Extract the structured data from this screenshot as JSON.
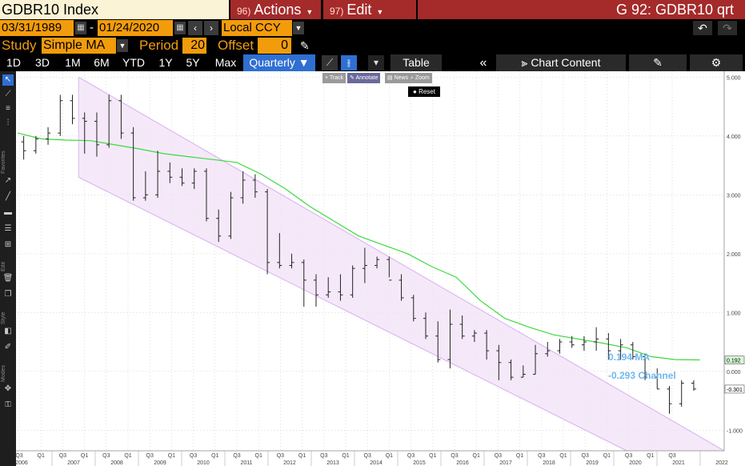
{
  "title": {
    "security": "GDBR10 Index",
    "actions_num": "96)",
    "actions_label": "Actions",
    "edit_num": "97)",
    "edit_label": "Edit",
    "function_code": "G 92: GDBR10 qrt"
  },
  "range": {
    "start": "03/31/1989",
    "end": "01/24/2020",
    "separator": "-",
    "currency": "Local CCY"
  },
  "study": {
    "label": "Study",
    "value": "Simple MA",
    "period_label": "Period",
    "period_value": "20",
    "offset_label": "Offset",
    "offset_value": "0"
  },
  "toolbar": {
    "ranges": [
      "1D",
      "3D",
      "1M",
      "6M",
      "YTD",
      "1Y",
      "5Y",
      "Max"
    ],
    "frequency": "Quarterly ▼",
    "table": "Table",
    "chart_content": "Chart Content"
  },
  "left_toolbar_labels": {
    "favorites": "Favorites",
    "edit": "Edit",
    "style": "Style",
    "modes": "Modes"
  },
  "float_panel": {
    "track": "Track",
    "annotate": "Annotate",
    "news": "News",
    "zoom": "Zoom",
    "reset": "Reset"
  },
  "annotations": {
    "ma": "0.194 MA",
    "channel": "-0.293 Channel",
    "ma_tag": "0.192",
    "price_tag": "-0.301"
  },
  "colors": {
    "amber": "#f29c0c",
    "maroon": "#a52a2a",
    "ma_line": "#3dd93d",
    "channel_fill": "#f1e2f7",
    "channel_line": "#d7aef0",
    "annotation": "#6fb7ee"
  },
  "chart_data": {
    "type": "ohlc",
    "yticks": [
      "5.000",
      "4.000",
      "3.000",
      "2.000",
      "1.000",
      "0.000",
      "-1.000"
    ],
    "ylim": [
      -1.35,
      5.1
    ],
    "xlim": [
      0,
      58
    ],
    "quarter_labels": [
      "Q3",
      "Q1",
      "Q3",
      "Q1",
      "Q3",
      "Q1",
      "Q3",
      "Q1",
      "Q3",
      "Q1",
      "Q3",
      "Q1",
      "Q3",
      "Q1",
      "Q3",
      "Q1",
      "Q3",
      "Q1",
      "Q3",
      "Q1",
      "Q3",
      "Q1",
      "Q3",
      "Q1",
      "Q3",
      "Q1",
      "Q3",
      "Q1",
      "Q3",
      "Q1",
      "Q3"
    ],
    "year_labels": [
      "2006",
      "2007",
      "2008",
      "2009",
      "2010",
      "2011",
      "2012",
      "2013",
      "2014",
      "2015",
      "2016",
      "2017",
      "2018",
      "2019",
      "2020",
      "2021",
      "2022"
    ],
    "bars": [
      {
        "o": 3.9,
        "h": 4.0,
        "l": 3.6,
        "c": 3.75
      },
      {
        "o": 3.75,
        "h": 4.0,
        "l": 3.7,
        "c": 3.95
      },
      {
        "o": 3.95,
        "h": 4.15,
        "l": 3.85,
        "c": 4.05
      },
      {
        "o": 4.05,
        "h": 4.7,
        "l": 4.0,
        "c": 4.6
      },
      {
        "o": 4.6,
        "h": 4.7,
        "l": 4.2,
        "c": 4.3
      },
      {
        "o": 4.3,
        "h": 4.4,
        "l": 3.7,
        "c": 4.25
      },
      {
        "o": 4.25,
        "h": 4.4,
        "l": 3.65,
        "c": 3.85
      },
      {
        "o": 3.85,
        "h": 4.7,
        "l": 3.8,
        "c": 4.6
      },
      {
        "o": 4.6,
        "h": 4.7,
        "l": 3.95,
        "c": 4.05
      },
      {
        "o": 4.05,
        "h": 4.15,
        "l": 2.9,
        "c": 2.95
      },
      {
        "o": 2.95,
        "h": 3.4,
        "l": 2.9,
        "c": 3.0
      },
      {
        "o": 3.0,
        "h": 3.75,
        "l": 2.95,
        "c": 3.4
      },
      {
        "o": 3.4,
        "h": 3.55,
        "l": 3.2,
        "c": 3.3
      },
      {
        "o": 3.3,
        "h": 3.45,
        "l": 3.15,
        "c": 3.2
      },
      {
        "o": 3.2,
        "h": 3.45,
        "l": 3.1,
        "c": 3.4
      },
      {
        "o": 3.4,
        "h": 3.45,
        "l": 2.55,
        "c": 2.6
      },
      {
        "o": 2.6,
        "h": 2.75,
        "l": 2.2,
        "c": 2.3
      },
      {
        "o": 2.3,
        "h": 3.05,
        "l": 2.25,
        "c": 2.95
      },
      {
        "o": 2.95,
        "h": 3.4,
        "l": 2.85,
        "c": 3.25
      },
      {
        "o": 3.25,
        "h": 3.35,
        "l": 2.95,
        "c": 3.05
      },
      {
        "o": 3.05,
        "h": 3.1,
        "l": 1.65,
        "c": 1.85
      },
      {
        "o": 1.85,
        "h": 2.35,
        "l": 1.75,
        "c": 1.8
      },
      {
        "o": 1.8,
        "h": 2.0,
        "l": 1.75,
        "c": 1.85
      },
      {
        "o": 1.85,
        "h": 1.9,
        "l": 1.1,
        "c": 1.55
      },
      {
        "o": 1.55,
        "h": 1.65,
        "l": 1.1,
        "c": 1.3
      },
      {
        "o": 1.3,
        "h": 1.6,
        "l": 1.25,
        "c": 1.35
      },
      {
        "o": 1.35,
        "h": 1.65,
        "l": 1.2,
        "c": 1.3
      },
      {
        "o": 1.3,
        "h": 1.8,
        "l": 1.25,
        "c": 1.75
      },
      {
        "o": 1.75,
        "h": 2.1,
        "l": 1.5,
        "c": 1.8
      },
      {
        "o": 1.8,
        "h": 1.95,
        "l": 1.75,
        "c": 1.9
      },
      {
        "o": 1.9,
        "h": 1.95,
        "l": 1.6,
        "c": 1.55
      },
      {
        "o": 1.55,
        "h": 1.65,
        "l": 1.2,
        "c": 1.25
      },
      {
        "o": 1.25,
        "h": 1.3,
        "l": 0.85,
        "c": 0.9
      },
      {
        "o": 0.9,
        "h": 1.0,
        "l": 0.55,
        "c": 0.6
      },
      {
        "o": 0.6,
        "h": 0.85,
        "l": 0.15,
        "c": 0.2
      },
      {
        "o": 0.2,
        "h": 1.05,
        "l": 0.05,
        "c": 0.8
      },
      {
        "o": 0.8,
        "h": 0.95,
        "l": 0.55,
        "c": 0.6
      },
      {
        "o": 0.6,
        "h": 0.7,
        "l": 0.5,
        "c": 0.65
      },
      {
        "o": 0.65,
        "h": 0.7,
        "l": 0.2,
        "c": 0.35
      },
      {
        "o": 0.35,
        "h": 0.45,
        "l": -0.15,
        "c": 0.15
      },
      {
        "o": 0.15,
        "h": 0.2,
        "l": -0.15,
        "c": -0.1
      },
      {
        "o": -0.1,
        "h": 0.1,
        "l": -0.1,
        "c": -0.05
      },
      {
        "o": -0.05,
        "h": 0.45,
        "l": -0.05,
        "c": 0.3
      },
      {
        "o": 0.3,
        "h": 0.5,
        "l": 0.25,
        "c": 0.35
      },
      {
        "o": 0.35,
        "h": 0.55,
        "l": 0.3,
        "c": 0.5
      },
      {
        "o": 0.5,
        "h": 0.6,
        "l": 0.4,
        "c": 0.45
      },
      {
        "o": 0.45,
        "h": 0.6,
        "l": 0.35,
        "c": 0.5
      },
      {
        "o": 0.5,
        "h": 0.75,
        "l": 0.35,
        "c": 0.55
      },
      {
        "o": 0.55,
        "h": 0.65,
        "l": 0.2,
        "c": 0.35
      },
      {
        "o": 0.35,
        "h": 0.55,
        "l": 0.2,
        "c": 0.45
      },
      {
        "o": 0.45,
        "h": 0.5,
        "l": 0.2,
        "c": 0.25
      },
      {
        "o": 0.25,
        "h": 0.3,
        "l": -0.15,
        "c": -0.1
      },
      {
        "o": -0.1,
        "h": 0.05,
        "l": -0.3,
        "c": -0.3
      },
      {
        "o": -0.3,
        "h": -0.25,
        "l": -0.72,
        "c": -0.55
      },
      {
        "o": -0.55,
        "h": -0.15,
        "l": -0.6,
        "c": -0.2
      },
      {
        "o": -0.2,
        "h": -0.15,
        "l": -0.33,
        "c": -0.3
      }
    ],
    "ma": [
      [
        0,
        4.05
      ],
      [
        2,
        3.95
      ],
      [
        4,
        3.93
      ],
      [
        6,
        3.92
      ],
      [
        8,
        3.85
      ],
      [
        10,
        3.78
      ],
      [
        12,
        3.7
      ],
      [
        14,
        3.65
      ],
      [
        16,
        3.6
      ],
      [
        18,
        3.55
      ],
      [
        20,
        3.35
      ],
      [
        22,
        3.1
      ],
      [
        24,
        2.8
      ],
      [
        26,
        2.55
      ],
      [
        28,
        2.3
      ],
      [
        30,
        2.15
      ],
      [
        32,
        2.0
      ],
      [
        34,
        1.78
      ],
      [
        36,
        1.6
      ],
      [
        38,
        1.2
      ],
      [
        40,
        0.9
      ],
      [
        42,
        0.75
      ],
      [
        44,
        0.62
      ],
      [
        46,
        0.55
      ],
      [
        48,
        0.48
      ],
      [
        50,
        0.4
      ],
      [
        52,
        0.25
      ],
      [
        54,
        0.2
      ],
      [
        56,
        0.194
      ]
    ],
    "channel_upper": [
      [
        5,
        5.0
      ],
      [
        58,
        -1.35
      ]
    ],
    "channel_lower": [
      [
        5,
        3.3
      ],
      [
        50,
        -1.35
      ]
    ]
  }
}
